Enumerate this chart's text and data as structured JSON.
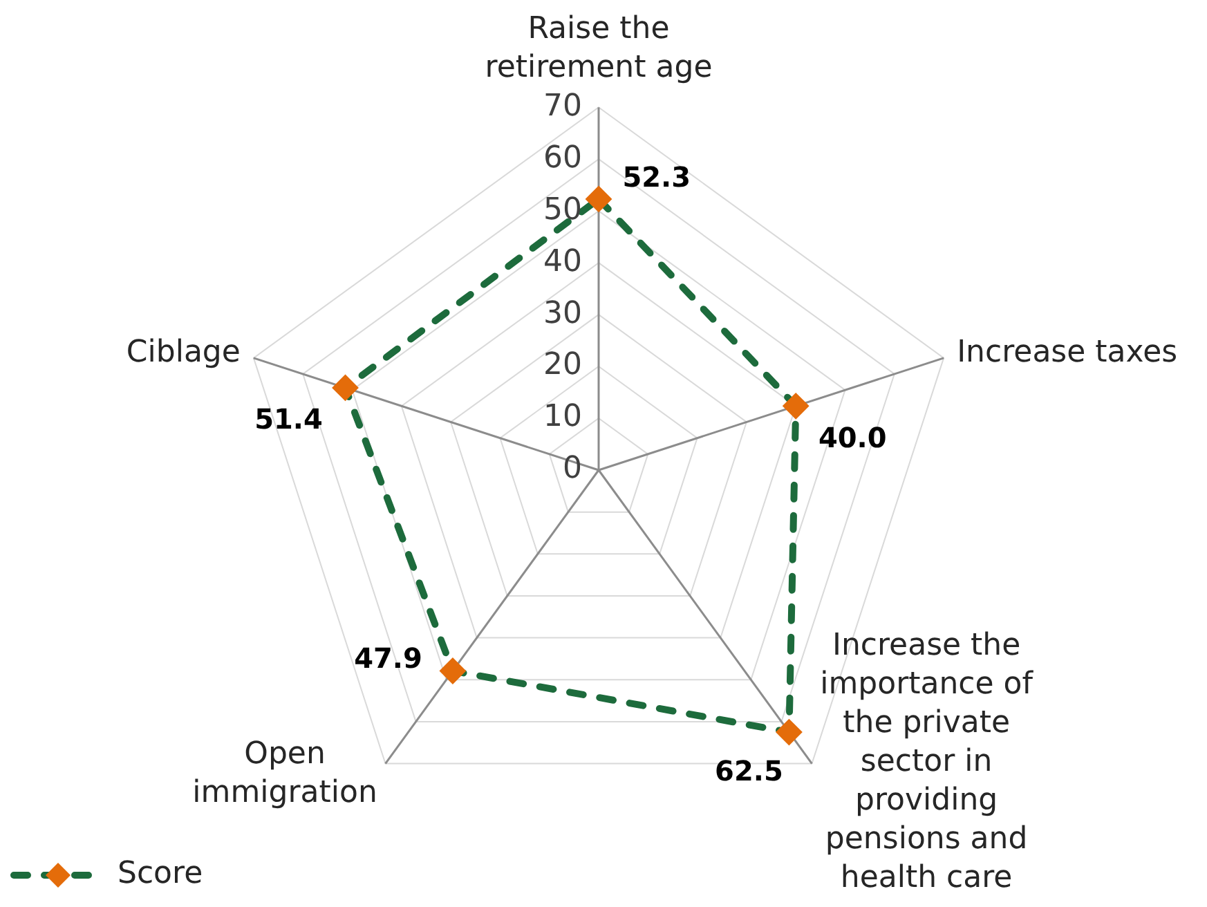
{
  "chart_data": {
    "type": "radar",
    "categories": [
      "Raise the retirement age",
      "Increase taxes",
      "Increase the importance of the private sector in providing pensions and health care",
      "Open immigration",
      "Ciblage"
    ],
    "series": [
      {
        "name": "Score",
        "color": "#1d6b3c",
        "colors": [
          "#e46c0a",
          "#e46c0a",
          "#e46c0a",
          "#e46c0a",
          "#e46c0a"
        ],
        "values": [
          52.3,
          40.0,
          62.5,
          47.9,
          51.4
        ],
        "value_labels": [
          "52.3",
          "40.0",
          "62.5",
          "47.9",
          "51.4"
        ]
      }
    ],
    "ylim": [
      0,
      70
    ],
    "yticks": [
      0,
      10,
      20,
      30,
      40,
      50,
      60,
      70
    ],
    "grid": true,
    "legend": "bottom left",
    "marker": "diamond",
    "line_style": "dashed"
  }
}
